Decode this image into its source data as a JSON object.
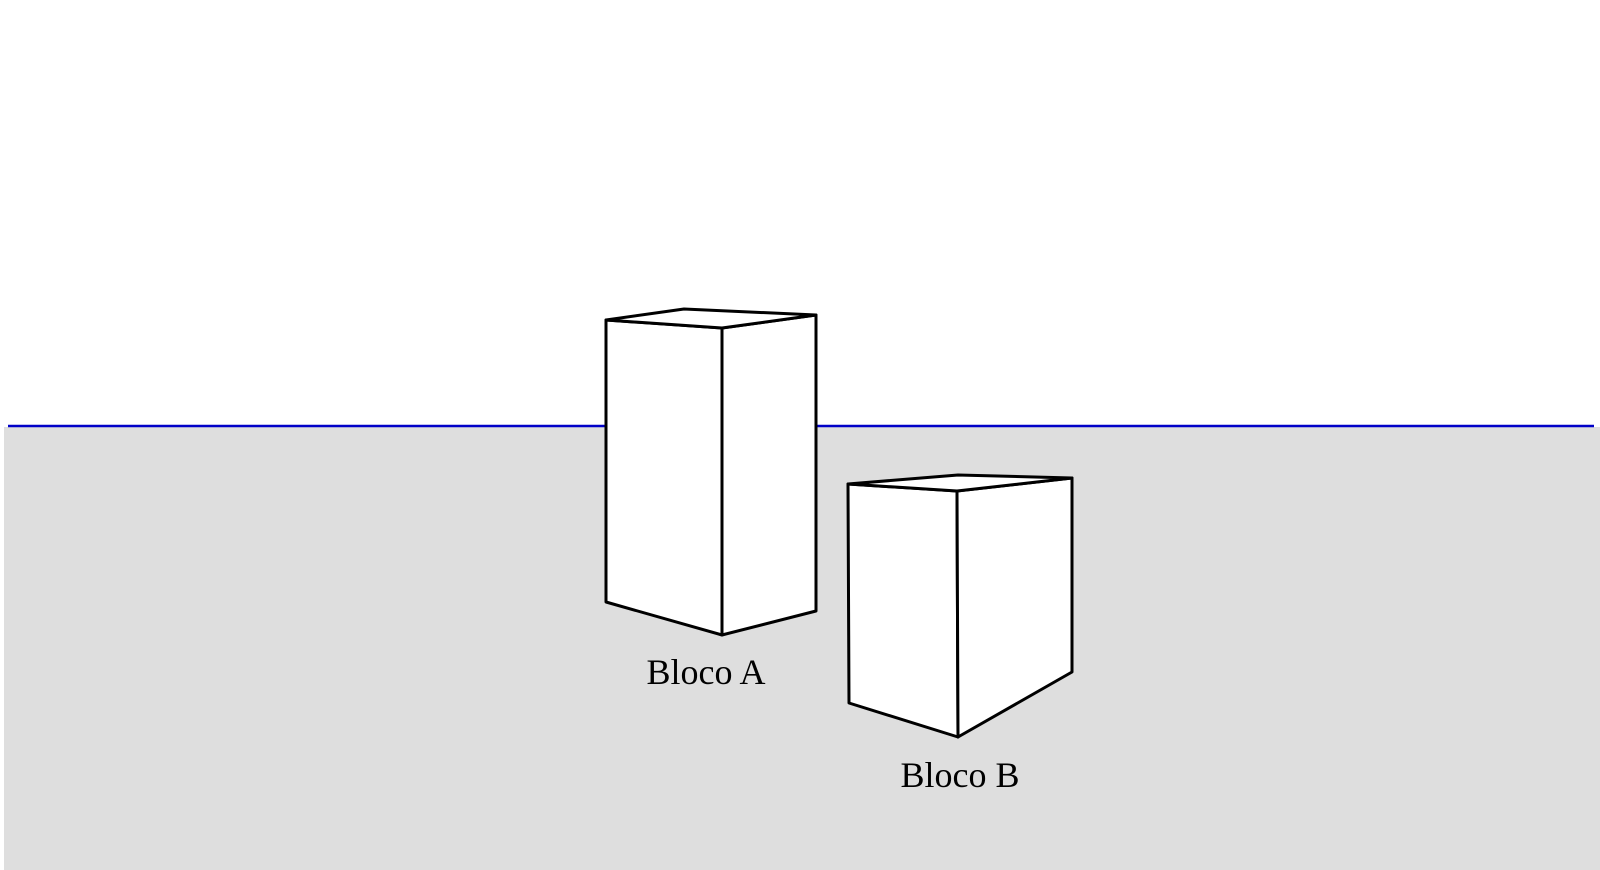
{
  "diagram": {
    "colors": {
      "sky": "#ffffff",
      "ground": "#dedede",
      "horizon": "#0000c8",
      "block_fill": "#ffffff",
      "outline": "#000000"
    },
    "blocks": [
      {
        "id": "a",
        "label": "Bloco A"
      },
      {
        "id": "b",
        "label": "Bloco B"
      }
    ]
  }
}
